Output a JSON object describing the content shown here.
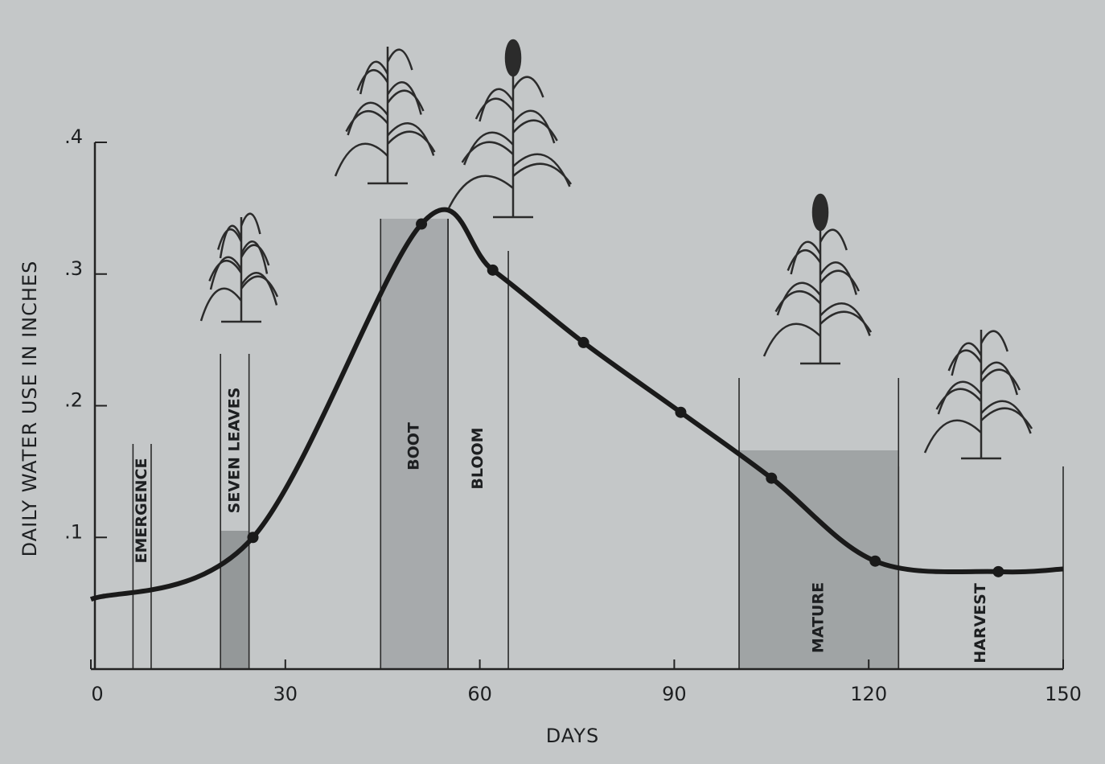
{
  "chart_data": {
    "type": "line",
    "x_label": "DAYS",
    "y_label": "DAILY WATER USE IN INCHES",
    "xlim": [
      0,
      150
    ],
    "ylim": [
      0,
      0.4
    ],
    "xticks": [
      0,
      30,
      60,
      90,
      120,
      150
    ],
    "yticks": [
      {
        "value": 0.1,
        "label": ".1"
      },
      {
        "value": 0.2,
        "label": ".2"
      },
      {
        "value": 0.3,
        "label": ".3"
      },
      {
        "value": 0.4,
        "label": ".4"
      }
    ],
    "series": [
      {
        "color": "#1a1a1a",
        "x": [
          0,
          25,
          51,
          62,
          76,
          91,
          105,
          121,
          140,
          150
        ],
        "values": [
          0.053,
          0.1,
          0.338,
          0.303,
          0.248,
          0.195,
          0.145,
          0.082,
          0.074,
          0.076
        ]
      }
    ],
    "stages": [
      {
        "label": "EMERGENCE",
        "start": 6.5,
        "end": 9.3,
        "color": null
      },
      {
        "label": "SEVEN LEAVES",
        "start": 20,
        "end": 24.4,
        "color": "#8c8f91"
      },
      {
        "label": "BOOT",
        "start": 44.7,
        "end": 55.1,
        "color": "#a2a5a7"
      },
      {
        "label": "BLOOM",
        "start": 55.1,
        "end": 64.4,
        "color": null
      },
      {
        "label": "MATURE",
        "start": 100,
        "end": 124.6,
        "color": "#9a9d9f"
      },
      {
        "label": "HARVEST",
        "start": 124.6,
        "end": 150,
        "color": null
      }
    ]
  }
}
